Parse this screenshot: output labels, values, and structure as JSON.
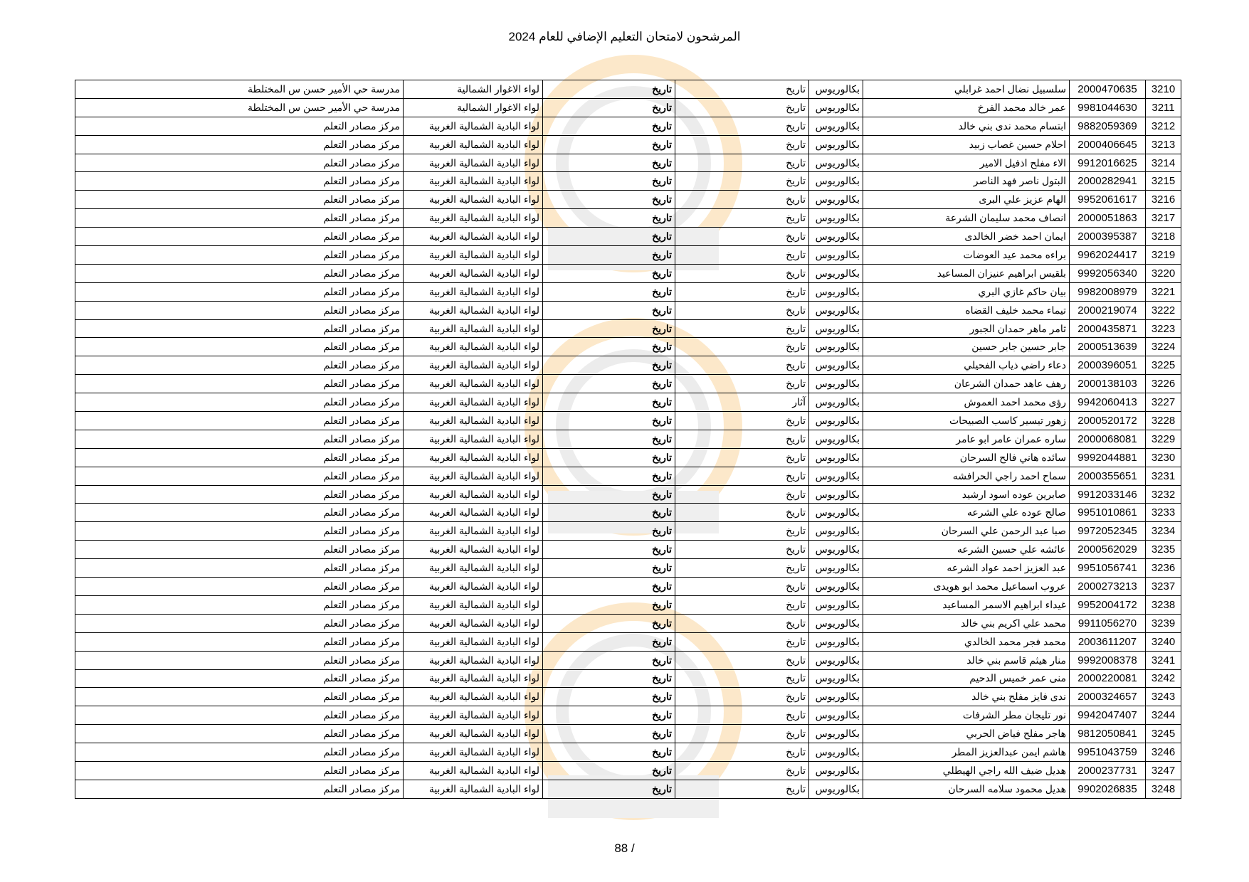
{
  "title": "المرشحون لامتحان التعليم الإضافي للعام 2024",
  "page_number": "88 /",
  "watermark": {
    "icon": "clock-logo-watermark",
    "colors": [
      "#f39c12",
      "#c0c0c0"
    ]
  },
  "rows": [
    [
      "3210",
      "2000470635",
      "سلسبيل نضال احمد غرابلي",
      "بكالوريوس",
      "تاريخ",
      "تاريخ",
      "لواء الاغوار الشمالية",
      "مدرسة حي الأمير حسن س المختلطة"
    ],
    [
      "3211",
      "9981044630",
      "عمر خالد محمد الفرخ",
      "بكالوريوس",
      "تاريخ",
      "تاريخ",
      "لواء الاغوار الشمالية",
      "مدرسة حي الأمير حسن س المختلطة"
    ],
    [
      "3212",
      "9882059369",
      "ابتسام محمد ندى بني خالد",
      "بكالوريوس",
      "تاريخ",
      "تاريخ",
      "لواء البادية الشمالية الغربية",
      "مركز مصادر التعلم"
    ],
    [
      "3213",
      "2000406645",
      "احلام حسين غصاب زبيد",
      "بكالوريوس",
      "تاريخ",
      "تاريخ",
      "لواء البادية الشمالية الغربية",
      "مركز مصادر التعلم"
    ],
    [
      "3214",
      "9912016625",
      "الاء مفلح اذفيل الامير",
      "بكالوريوس",
      "تاريخ",
      "تاريخ",
      "لواء البادية الشمالية الغربية",
      "مركز مصادر التعلم"
    ],
    [
      "3215",
      "2000282941",
      "البتول ناصر فهد الناصر",
      "بكالوريوس",
      "تاريخ",
      "تاريخ",
      "لواء البادية الشمالية الغربية",
      "مركز مصادر التعلم"
    ],
    [
      "3216",
      "9952061617",
      "الهام عزيز علي البرى",
      "بكالوريوس",
      "تاريخ",
      "تاريخ",
      "لواء البادية الشمالية الغربية",
      "مركز مصادر التعلم"
    ],
    [
      "3217",
      "2000051863",
      "انصاف محمد سليمان الشرعة",
      "بكالوريوس",
      "تاريخ",
      "تاريخ",
      "لواء البادية الشمالية الغربية",
      "مركز مصادر التعلم"
    ],
    [
      "3218",
      "2000395387",
      "ايمان احمد خضر الخالدى",
      "بكالوريوس",
      "تاريخ",
      "تاريخ",
      "لواء البادية الشمالية الغربية",
      "مركز مصادر التعلم"
    ],
    [
      "3219",
      "9962024417",
      "براءه محمد عيد العوضات",
      "بكالوريوس",
      "تاريخ",
      "تاريخ",
      "لواء البادية الشمالية الغربية",
      "مركز مصادر التعلم"
    ],
    [
      "3220",
      "9992056340",
      "بلقيس ابراهيم عنيزان المساعيد",
      "بكالوريوس",
      "تاريخ",
      "تاريخ",
      "لواء البادية الشمالية الغربية",
      "مركز مصادر التعلم"
    ],
    [
      "3221",
      "9982008979",
      "بيان حاكم غازي البري",
      "بكالوريوس",
      "تاريخ",
      "تاريخ",
      "لواء البادية الشمالية الغربية",
      "مركز مصادر التعلم"
    ],
    [
      "3222",
      "2000219074",
      "تيماء محمد خليف القضاه",
      "بكالوريوس",
      "تاريخ",
      "تاريخ",
      "لواء البادية الشمالية الغربية",
      "مركز مصادر التعلم"
    ],
    [
      "3223",
      "2000435871",
      "ثامر ماهر حمدان الجبور",
      "بكالوريوس",
      "تاريخ",
      "تاريخ",
      "لواء البادية الشمالية الغربية",
      "مركز مصادر التعلم"
    ],
    [
      "3224",
      "2000513639",
      "جابر حسين جابر حسين",
      "بكالوريوس",
      "تاريخ",
      "تاريخ",
      "لواء البادية الشمالية الغربية",
      "مركز مصادر التعلم"
    ],
    [
      "3225",
      "2000396051",
      "دعاء راضي ذياب الفحيلي",
      "بكالوريوس",
      "تاريخ",
      "تاريخ",
      "لواء البادية الشمالية الغربية",
      "مركز مصادر التعلم"
    ],
    [
      "3226",
      "2000138103",
      "رهف عاهد حمدان الشرعان",
      "بكالوريوس",
      "تاريخ",
      "تاريخ",
      "لواء البادية الشمالية الغربية",
      "مركز مصادر التعلم"
    ],
    [
      "3227",
      "9942060413",
      "رؤى محمد احمد العموش",
      "بكالوريوس",
      "آثار",
      "تاريخ",
      "لواء البادية الشمالية الغربية",
      "مركز مصادر التعلم"
    ],
    [
      "3228",
      "2000520172",
      "زهور تيسير كاسب الصبيحات",
      "بكالوريوس",
      "تاريخ",
      "تاريخ",
      "لواء البادية الشمالية الغربية",
      "مركز مصادر التعلم"
    ],
    [
      "3229",
      "2000068081",
      "ساره عمران عامر ابو عامر",
      "بكالوريوس",
      "تاريخ",
      "تاريخ",
      "لواء البادية الشمالية الغربية",
      "مركز مصادر التعلم"
    ],
    [
      "3230",
      "9992044881",
      "سائده هاني فالح السرحان",
      "بكالوريوس",
      "تاريخ",
      "تاريخ",
      "لواء البادية الشمالية الغربية",
      "مركز مصادر التعلم"
    ],
    [
      "3231",
      "2000355651",
      "سماح احمد راجي الحرافشه",
      "بكالوريوس",
      "تاريخ",
      "تاريخ",
      "لواء البادية الشمالية الغربية",
      "مركز مصادر التعلم"
    ],
    [
      "3232",
      "9912033146",
      "صابرين عوده اسود ارشيد",
      "بكالوريوس",
      "تاريخ",
      "تاريخ",
      "لواء البادية الشمالية الغربية",
      "مركز مصادر التعلم"
    ],
    [
      "3233",
      "9951010861",
      "صالح عوده علي الشرعه",
      "بكالوريوس",
      "تاريخ",
      "تاريخ",
      "لواء البادية الشمالية الغربية",
      "مركز مصادر التعلم"
    ],
    [
      "3234",
      "9972052345",
      "صبا عبد الرحمن علي السرحان",
      "بكالوريوس",
      "تاريخ",
      "تاريخ",
      "لواء البادية الشمالية الغربية",
      "مركز مصادر التعلم"
    ],
    [
      "3235",
      "2000562029",
      "عائشه علي حسين الشرعه",
      "بكالوريوس",
      "تاريخ",
      "تاريخ",
      "لواء البادية الشمالية الغربية",
      "مركز مصادر التعلم"
    ],
    [
      "3236",
      "9951056741",
      "عبد العزيز احمد عواد الشرعه",
      "بكالوريوس",
      "تاريخ",
      "تاريخ",
      "لواء البادية الشمالية الغربية",
      "مركز مصادر التعلم"
    ],
    [
      "3237",
      "2000273213",
      "عروب اسماعيل محمد ابو هويدى",
      "بكالوريوس",
      "تاريخ",
      "تاريخ",
      "لواء البادية الشمالية الغربية",
      "مركز مصادر التعلم"
    ],
    [
      "3238",
      "9952004172",
      "غيداء ابراهيم الاسمر المساعيد",
      "بكالوريوس",
      "تاريخ",
      "تاريخ",
      "لواء البادية الشمالية الغربية",
      "مركز مصادر التعلم"
    ],
    [
      "3239",
      "9911056270",
      "محمد علي اكريم بني خالد",
      "بكالوريوس",
      "تاريخ",
      "تاريخ",
      "لواء البادية الشمالية الغربية",
      "مركز مصادر التعلم"
    ],
    [
      "3240",
      "2003611207",
      "محمد فجر محمد الخالدي",
      "بكالوريوس",
      "تاريخ",
      "تاريخ",
      "لواء البادية الشمالية الغربية",
      "مركز مصادر التعلم"
    ],
    [
      "3241",
      "9992008378",
      "منار هيثم قاسم بني خالد",
      "بكالوريوس",
      "تاريخ",
      "تاريخ",
      "لواء البادية الشمالية الغربية",
      "مركز مصادر التعلم"
    ],
    [
      "3242",
      "2000220081",
      "منى عمر خميس الدحيم",
      "بكالوريوس",
      "تاريخ",
      "تاريخ",
      "لواء البادية الشمالية الغربية",
      "مركز مصادر التعلم"
    ],
    [
      "3243",
      "2000324657",
      "ندى فايز مفلح بني خالد",
      "بكالوريوس",
      "تاريخ",
      "تاريخ",
      "لواء البادية الشمالية الغربية",
      "مركز مصادر التعلم"
    ],
    [
      "3244",
      "9942047407",
      "نور تليجان مطر الشرفات",
      "بكالوريوس",
      "تاريخ",
      "تاريخ",
      "لواء البادية الشمالية الغربية",
      "مركز مصادر التعلم"
    ],
    [
      "3245",
      "9812050841",
      "هاجر مفلح فياض الحربي",
      "بكالوريوس",
      "تاريخ",
      "تاريخ",
      "لواء البادية الشمالية الغربية",
      "مركز مصادر التعلم"
    ],
    [
      "3246",
      "9951043759",
      "هاشم ايمن عبدالعزيز المطر",
      "بكالوريوس",
      "تاريخ",
      "تاريخ",
      "لواء البادية الشمالية الغربية",
      "مركز مصادر التعلم"
    ],
    [
      "3247",
      "2000237731",
      "هديل ضيف الله راجي الهيطلي",
      "بكالوريوس",
      "تاريخ",
      "تاريخ",
      "لواء البادية الشمالية الغربية",
      "مركز مصادر التعلم"
    ],
    [
      "3248",
      "9902026835",
      "هديل محمود سلامه السرحان",
      "بكالوريوس",
      "تاريخ",
      "تاريخ",
      "لواء البادية الشمالية الغربية",
      "مركز مصادر التعلم"
    ]
  ]
}
